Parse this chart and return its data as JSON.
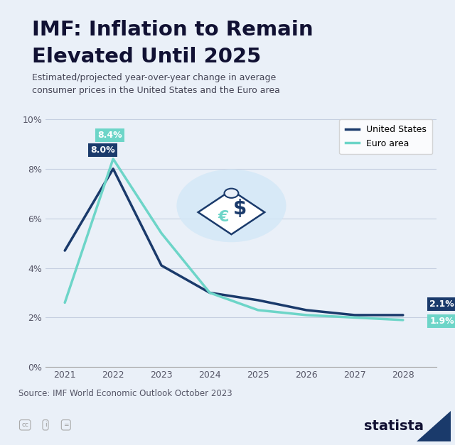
{
  "title_line1": "IMF: Inflation to Remain",
  "title_line2": "Elevated Until 2025",
  "subtitle": "Estimated/projected year-over-year change in average\nconsumer prices in the United States and the Euro area",
  "years": [
    2021,
    2022,
    2023,
    2024,
    2025,
    2026,
    2027,
    2028
  ],
  "us_values": [
    4.7,
    8.0,
    4.1,
    3.0,
    2.7,
    2.3,
    2.1,
    2.1
  ],
  "euro_values": [
    2.6,
    8.4,
    5.4,
    3.0,
    2.3,
    2.1,
    2.0,
    1.9
  ],
  "us_color": "#1a3a6b",
  "euro_color": "#6dd5c8",
  "us_label": "United States",
  "euro_label": "Euro area",
  "us_peak_label": "8.0%",
  "euro_peak_label": "8.4%",
  "us_end_label": "2.1%",
  "euro_end_label": "1.9%",
  "source_text": "Source: IMF World Economic Outlook October 2023",
  "bg_color": "#eaf0f8",
  "accent_color": "#1a6fb5",
  "ylim": [
    0,
    10.5
  ],
  "yticks": [
    0,
    2,
    4,
    6,
    8,
    10
  ],
  "ytick_labels": [
    "0%",
    "2%",
    "4%",
    "6%",
    "8%",
    "10%"
  ]
}
